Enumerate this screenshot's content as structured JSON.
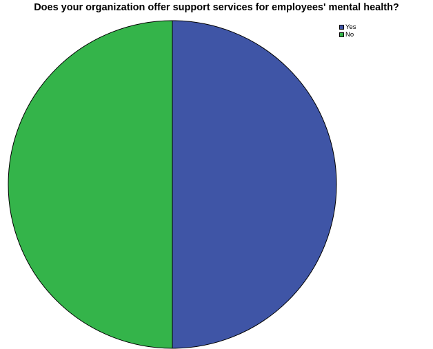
{
  "chart_data": {
    "type": "pie",
    "title": "Does your organization offer support services for employees' mental health?",
    "slices": [
      {
        "label": "Yes",
        "value": 50,
        "color": "#3f55a6"
      },
      {
        "label": "No",
        "value": 50,
        "color": "#34b44a"
      }
    ],
    "start": "12 o'clock",
    "direction": "clockwise",
    "legend_position": "top-right",
    "outline_color": "#000000"
  }
}
